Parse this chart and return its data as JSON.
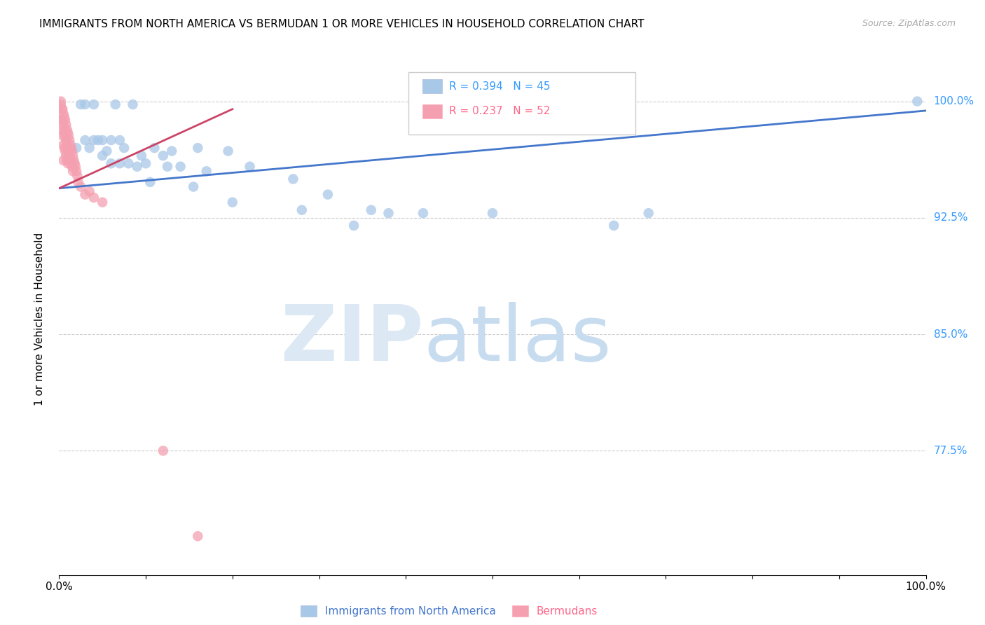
{
  "title": "IMMIGRANTS FROM NORTH AMERICA VS BERMUDAN 1 OR MORE VEHICLES IN HOUSEHOLD CORRELATION CHART",
  "source": "Source: ZipAtlas.com",
  "ylabel": "1 or more Vehicles in Household",
  "ytick_labels": [
    "100.0%",
    "92.5%",
    "85.0%",
    "77.5%"
  ],
  "ytick_values": [
    1.0,
    0.925,
    0.85,
    0.775
  ],
  "legend_blue_label": "Immigrants from North America",
  "legend_pink_label": "Bermudans",
  "blue_color": "#A8C8E8",
  "pink_color": "#F4A0B0",
  "line_blue_color": "#4477CC",
  "line_pink_color": "#CC4466",
  "xlim": [
    0,
    1.0
  ],
  "ylim": [
    0.695,
    1.025
  ],
  "blue_x": [
    0.02,
    0.025,
    0.03,
    0.03,
    0.035,
    0.04,
    0.04,
    0.045,
    0.05,
    0.05,
    0.055,
    0.06,
    0.06,
    0.065,
    0.07,
    0.07,
    0.075,
    0.08,
    0.085,
    0.09,
    0.095,
    0.1,
    0.105,
    0.11,
    0.12,
    0.125,
    0.13,
    0.14,
    0.155,
    0.16,
    0.17,
    0.195,
    0.2,
    0.22,
    0.27,
    0.28,
    0.31,
    0.34,
    0.36,
    0.38,
    0.42,
    0.5,
    0.64,
    0.68,
    0.99
  ],
  "blue_y": [
    0.97,
    0.998,
    0.975,
    0.998,
    0.97,
    0.975,
    0.998,
    0.975,
    0.975,
    0.965,
    0.968,
    0.975,
    0.96,
    0.998,
    0.975,
    0.96,
    0.97,
    0.96,
    0.998,
    0.958,
    0.965,
    0.96,
    0.948,
    0.97,
    0.965,
    0.958,
    0.968,
    0.958,
    0.945,
    0.97,
    0.955,
    0.968,
    0.935,
    0.958,
    0.95,
    0.93,
    0.94,
    0.92,
    0.93,
    0.928,
    0.928,
    0.928,
    0.92,
    0.928,
    1.0
  ],
  "pink_x": [
    0.002,
    0.002,
    0.002,
    0.003,
    0.003,
    0.004,
    0.004,
    0.004,
    0.005,
    0.005,
    0.005,
    0.005,
    0.006,
    0.006,
    0.006,
    0.007,
    0.007,
    0.007,
    0.008,
    0.008,
    0.008,
    0.009,
    0.009,
    0.009,
    0.01,
    0.01,
    0.01,
    0.011,
    0.011,
    0.012,
    0.012,
    0.013,
    0.013,
    0.014,
    0.014,
    0.015,
    0.015,
    0.016,
    0.016,
    0.017,
    0.018,
    0.019,
    0.02,
    0.021,
    0.022,
    0.025,
    0.03,
    0.035,
    0.04,
    0.05,
    0.12,
    0.16
  ],
  "pink_y": [
    1.0,
    0.998,
    0.988,
    0.995,
    0.985,
    0.995,
    0.988,
    0.978,
    0.992,
    0.982,
    0.972,
    0.962,
    0.99,
    0.98,
    0.97,
    0.988,
    0.978,
    0.968,
    0.985,
    0.975,
    0.965,
    0.982,
    0.972,
    0.962,
    0.98,
    0.97,
    0.96,
    0.978,
    0.968,
    0.975,
    0.965,
    0.972,
    0.962,
    0.97,
    0.96,
    0.968,
    0.958,
    0.965,
    0.955,
    0.962,
    0.96,
    0.958,
    0.955,
    0.952,
    0.948,
    0.945,
    0.94,
    0.942,
    0.938,
    0.935,
    0.775,
    0.72
  ],
  "blue_line_x": [
    0.0,
    1.0
  ],
  "blue_line_y": [
    0.944,
    0.994
  ],
  "pink_line_x": [
    0.0,
    0.2
  ],
  "pink_line_y": [
    0.944,
    0.995
  ]
}
